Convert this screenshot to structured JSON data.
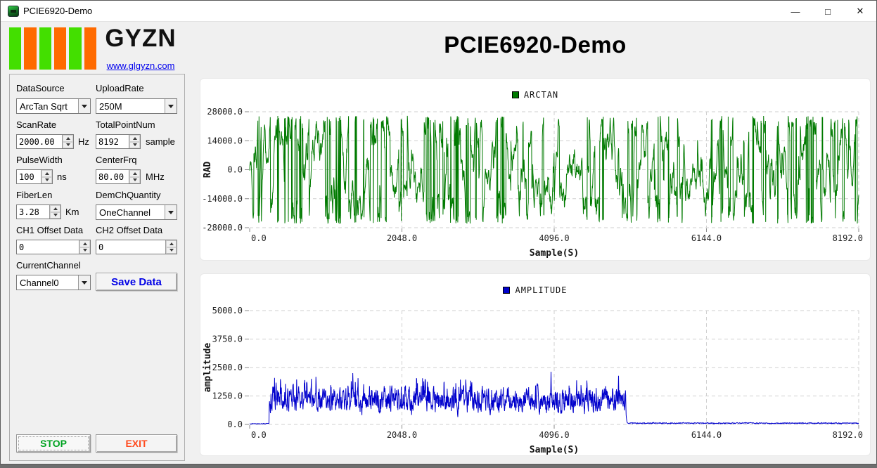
{
  "window": {
    "title": "PCIE6920-Demo",
    "controls": {
      "minimize": "—",
      "maximize": "□",
      "close": "✕"
    }
  },
  "logo": {
    "brand": "GYZN",
    "website": "www.glgyzn.com",
    "bars": [
      "#43DF00",
      "#FF6A00",
      "#43DF00",
      "#FF6A00",
      "#43DF00",
      "#FF6A00"
    ]
  },
  "main": {
    "title": "PCIE6920-Demo"
  },
  "sidebar": {
    "fields": [
      {
        "label": "DataSource",
        "type": "combo",
        "value": "ArcTan Sqrt",
        "unit": ""
      },
      {
        "label": "UploadRate",
        "type": "combo",
        "value": "250M",
        "unit": ""
      },
      {
        "label": "ScanRate",
        "type": "spin",
        "value": "2000.00",
        "unit": "Hz"
      },
      {
        "label": "TotalPointNum",
        "type": "spin",
        "value": "8192",
        "unit": "sample"
      },
      {
        "label": "PulseWidth",
        "type": "spin",
        "value": "100",
        "unit": "ns"
      },
      {
        "label": "CenterFrq",
        "type": "spin",
        "value": "80.00",
        "unit": "MHz"
      },
      {
        "label": "FiberLen",
        "type": "spin",
        "value": "3.28",
        "unit": "Km"
      },
      {
        "label": "DemChQuantity",
        "type": "combo",
        "value": "OneChannel",
        "unit": ""
      },
      {
        "label": "CH1 Offset Data",
        "type": "spin",
        "value": "0",
        "unit": ""
      },
      {
        "label": "CH2 Offset Data",
        "type": "spin",
        "value": "0",
        "unit": ""
      },
      {
        "label": "CurrentChannel",
        "type": "combo",
        "value": "Channel0",
        "unit": ""
      }
    ],
    "save_label": "Save Data",
    "stop_label": "STOP",
    "exit_label": "EXIT",
    "accent": {
      "save": "#0000E6",
      "stop": "#00A321",
      "exit": "#FF4A1E"
    }
  },
  "chart_data": [
    {
      "type": "line",
      "legend": "ARCTAN",
      "color": "#007A00",
      "xlabel": "Sample(S)",
      "ylabel": "RAD",
      "xlim": [
        0,
        8192
      ],
      "ylim": [
        -28000,
        28000
      ],
      "xticks": [
        0,
        2048,
        4096,
        6144,
        8192
      ],
      "yticks": [
        28000,
        14000,
        0,
        -14000,
        -28000
      ],
      "grid": "dashed",
      "legend_position": "top-center",
      "signal": {
        "kind": "wrapped-phase",
        "description": "dense phase-wrapped signal spanning ~±26000 RAD across entire 0–8192 sample range",
        "points": 2600,
        "step": 9000,
        "wrap": 26000,
        "jump_p": 0.05,
        "seed": 7
      }
    },
    {
      "type": "line",
      "legend": "AMPLITUDE",
      "color": "#0000CC",
      "xlabel": "Sample(S)",
      "ylabel": "amplitude",
      "xlim": [
        0,
        8192
      ],
      "ylim": [
        0,
        5000
      ],
      "xticks": [
        0,
        2048,
        4096,
        6144,
        8192
      ],
      "yticks": [
        5000,
        3750,
        2500,
        1250,
        0
      ],
      "grid": "dashed",
      "legend_position": "top-center",
      "signal": {
        "kind": "burst-noise",
        "description": "flat near 0 until ~260, noisy burst ~150–3300 (mean ~1100) until ~5060, then flat low noise to 8192",
        "points": 2400,
        "seed": 13,
        "segments": [
          {
            "from": 0,
            "to": 260,
            "base": 35,
            "noise": 25,
            "peak": 0
          },
          {
            "from": 260,
            "to": 5060,
            "base": 1050,
            "noise": 900,
            "peak": 3300
          },
          {
            "from": 5060,
            "to": 8192,
            "base": 55,
            "noise": 40,
            "peak": 0
          }
        ]
      }
    }
  ]
}
